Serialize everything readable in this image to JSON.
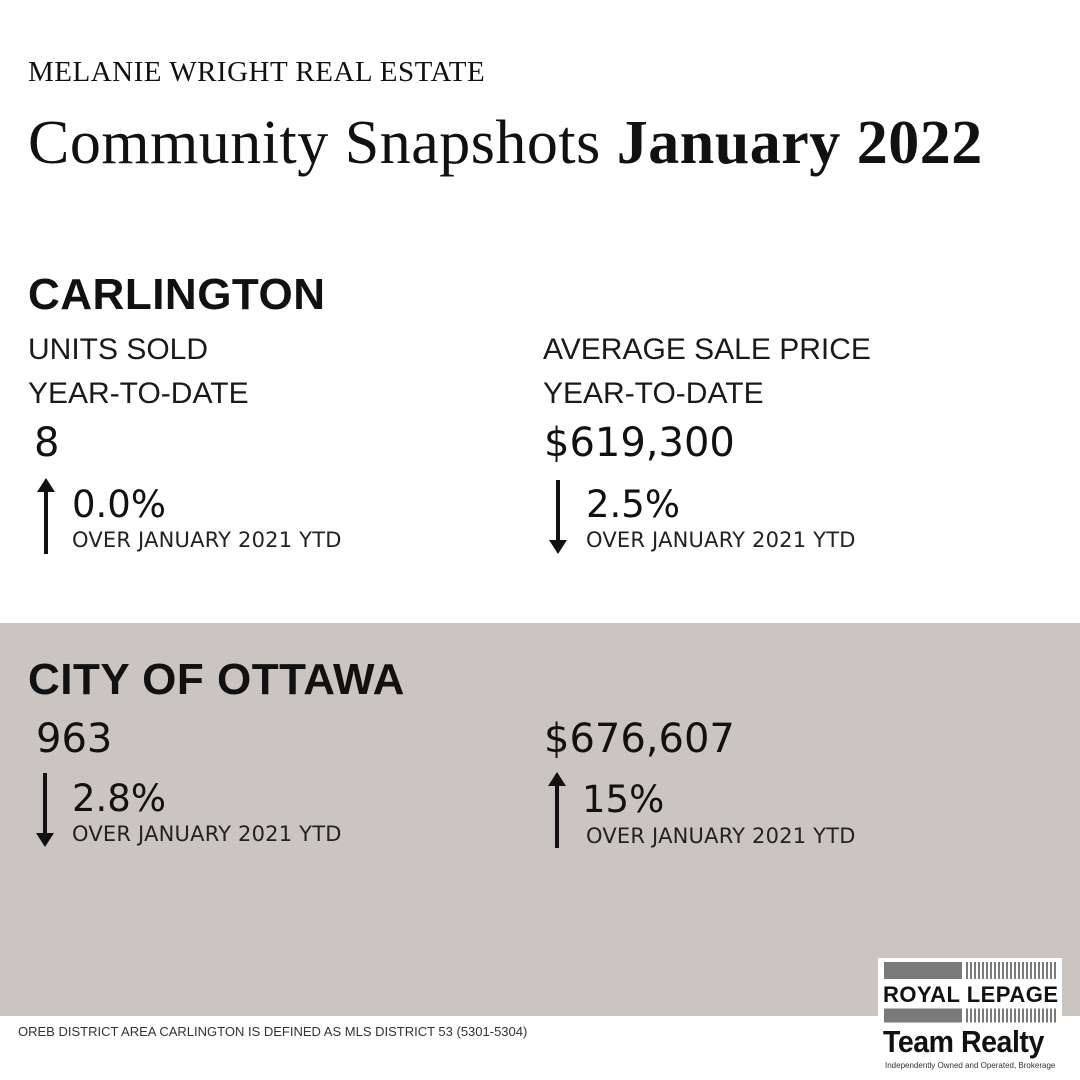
{
  "header": {
    "brand": "MELANIE WRIGHT REAL ESTATE",
    "title_regular": "Community Snapshots",
    "title_bold": "January 2022"
  },
  "carlington": {
    "title": "CARLINGTON",
    "units": {
      "label": "UNITS SOLD",
      "sublabel": "YEAR-TO-DATE",
      "value": "8",
      "change": "0.0%",
      "direction": "up",
      "comparison": "OVER JANUARY 2021 YTD"
    },
    "price": {
      "label": "AVERAGE SALE PRICE",
      "sublabel": "YEAR-TO-DATE",
      "value": "$619,300",
      "change": "2.5%",
      "direction": "down",
      "comparison": "OVER JANUARY 2021 YTD"
    }
  },
  "ottawa": {
    "title": "CITY OF OTTAWA",
    "units": {
      "value": "963",
      "change": "2.8%",
      "direction": "down",
      "comparison": "OVER JANUARY 2021 YTD"
    },
    "price": {
      "value": "$676,607",
      "change": "15%",
      "direction": "up",
      "comparison": "OVER JANUARY 2021 YTD"
    }
  },
  "footnote": "OREB DISTRICT AREA CARLINGTON IS DEFINED AS MLS DISTRICT 53 (5301-5304)",
  "logo": {
    "line1": "ROYAL LEPAGE",
    "line2": "Team Realty",
    "tagline": "Independently Owned and Operated, Brokerage"
  },
  "colors": {
    "ottawa_panel": "#cbc5c1",
    "text": "#111111",
    "logo_grey": "#7a7a7a"
  },
  "icons": {
    "up": "arrow-up-icon",
    "down": "arrow-down-icon"
  }
}
